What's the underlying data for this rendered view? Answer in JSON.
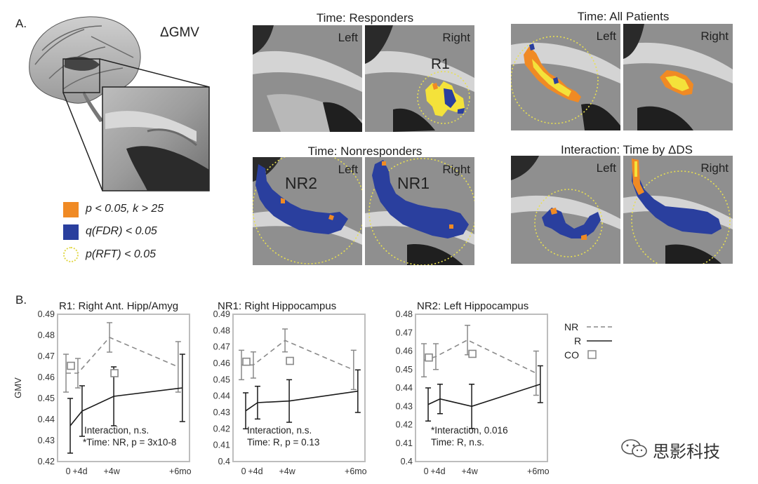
{
  "panel_a": {
    "letter": "A.",
    "gmv_label": "ΔGMV",
    "legend": [
      {
        "text": "p < 0.05, k > 25",
        "color": "#f08a24",
        "kind": "square"
      },
      {
        "text": "q(FDR) < 0.05",
        "color": "#2a3f9e",
        "kind": "square"
      },
      {
        "text": "p(RFT) < 0.05",
        "color": "#e8e050",
        "kind": "dotted-circle"
      }
    ],
    "maps": [
      {
        "title": "Time: Responders",
        "left_label": "Left",
        "right_label": "Right",
        "cluster_labels": [
          "R1"
        ]
      },
      {
        "title": "Time: All Patients",
        "left_label": "Left",
        "right_label": "Right",
        "cluster_labels": []
      },
      {
        "title": "Time: Nonresponders",
        "left_label": "Left",
        "right_label": "Right",
        "cluster_labels": [
          "NR2",
          "NR1"
        ]
      },
      {
        "title": "Interaction: Time by ΔDS",
        "left_label": "Left",
        "right_label": "Right",
        "cluster_labels": []
      }
    ]
  },
  "panel_b": {
    "letter": "B.",
    "legend": [
      {
        "label": "NR",
        "style": "dashed"
      },
      {
        "label": "R",
        "style": "solid"
      },
      {
        "label": "CO",
        "style": "square"
      }
    ],
    "watermark": "思影科技"
  },
  "chart_data": [
    {
      "type": "line",
      "title": "R1: Right Ant. Hipp/Amyg",
      "ylabel": "GMV",
      "ylim": [
        0.42,
        0.49
      ],
      "yticks": [
        "0.49",
        "0.48",
        "0.47",
        "0.46",
        "0.45",
        "0.44",
        "0.43",
        "0.42"
      ],
      "xticks": [
        "0",
        "+4d",
        "+4w",
        "+6mo"
      ],
      "x": [
        0,
        1,
        2,
        3
      ],
      "series": [
        {
          "name": "NR",
          "style": "dashed",
          "values": [
            0.462,
            0.462,
            0.479,
            0.465
          ],
          "err": [
            0.009,
            0.007,
            0.007,
            0.012
          ]
        },
        {
          "name": "R",
          "style": "solid",
          "values": [
            0.437,
            0.444,
            0.451,
            0.455
          ],
          "err": [
            0.013,
            0.012,
            0.014,
            0.016
          ]
        },
        {
          "name": "CO",
          "style": "square",
          "values": [
            0.4655,
            null,
            0.462,
            null
          ],
          "err": [
            null,
            null,
            null,
            null
          ]
        }
      ],
      "annotations": [
        "Interaction, n.s.",
        "*Time: NR, p = 3x10-8"
      ]
    },
    {
      "type": "line",
      "title": "NR1: Right Hippocampus",
      "ylabel": "",
      "ylim": [
        0.4,
        0.49
      ],
      "yticks": [
        "0.49",
        "0.48",
        "0.47",
        "0.46",
        "0.45",
        "0.44",
        "0.43",
        "0.42",
        "0.41",
        "0.4"
      ],
      "xticks": [
        "0",
        "+4d",
        "+4w",
        "+6mo"
      ],
      "x": [
        0,
        1,
        2,
        3
      ],
      "series": [
        {
          "name": "NR",
          "style": "dashed",
          "values": [
            0.459,
            0.459,
            0.474,
            0.456
          ],
          "err": [
            0.009,
            0.008,
            0.007,
            0.012
          ]
        },
        {
          "name": "R",
          "style": "solid",
          "values": [
            0.431,
            0.436,
            0.437,
            0.443
          ],
          "err": [
            0.011,
            0.01,
            0.013,
            0.013
          ]
        },
        {
          "name": "CO",
          "style": "square",
          "values": [
            0.461,
            null,
            0.4615,
            null
          ],
          "err": [
            null,
            null,
            null,
            null
          ]
        }
      ],
      "annotations": [
        "Interaction, n.s.",
        "Time: R, p = 0.13"
      ]
    },
    {
      "type": "line",
      "title": "NR2: Left Hippocampus",
      "ylabel": "",
      "ylim": [
        0.4,
        0.48
      ],
      "yticks": [
        "0.48",
        "0.47",
        "0.46",
        "0.45",
        "0.44",
        "0.43",
        "0.42",
        "0.41",
        "0.4"
      ],
      "xticks": [
        "0",
        "+4d",
        "+4w",
        "+6mo"
      ],
      "x": [
        0,
        1,
        2,
        3
      ],
      "series": [
        {
          "name": "NR",
          "style": "dashed",
          "values": [
            0.455,
            0.457,
            0.466,
            0.448
          ],
          "err": [
            0.009,
            0.007,
            0.008,
            0.012
          ]
        },
        {
          "name": "R",
          "style": "solid",
          "values": [
            0.431,
            0.434,
            0.43,
            0.442
          ],
          "err": [
            0.009,
            0.008,
            0.012,
            0.01
          ]
        },
        {
          "name": "CO",
          "style": "square",
          "values": [
            0.4565,
            null,
            0.4585,
            null
          ],
          "err": [
            null,
            null,
            null,
            null
          ]
        }
      ],
      "annotations": [
        "*Interaction, 0.016",
        "Time: R, n.s."
      ]
    }
  ]
}
